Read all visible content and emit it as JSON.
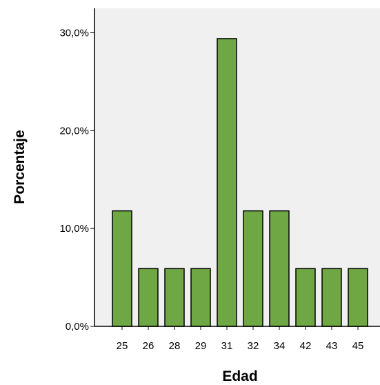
{
  "chart_data": {
    "type": "bar",
    "xlabel": "Edad",
    "ylabel": "Porcentaje",
    "categories": [
      "25",
      "26",
      "28",
      "29",
      "31",
      "32",
      "34",
      "42",
      "43",
      "45"
    ],
    "values": [
      11.8,
      5.9,
      5.9,
      5.9,
      29.4,
      11.8,
      11.8,
      5.9,
      5.9,
      5.9
    ],
    "ylim": [
      0,
      32.5
    ],
    "yticks": [
      {
        "value": 0,
        "label": "0,0%"
      },
      {
        "value": 10,
        "label": "10,0%"
      },
      {
        "value": 20,
        "label": "20,0%"
      },
      {
        "value": 30,
        "label": "30,0%"
      }
    ],
    "grid": false,
    "legend": "none",
    "colors": {
      "bar_fill": "#6ea743",
      "bar_stroke": "#000000",
      "plot_background": "#f0f0f0",
      "page_background": "#ffffff"
    }
  }
}
